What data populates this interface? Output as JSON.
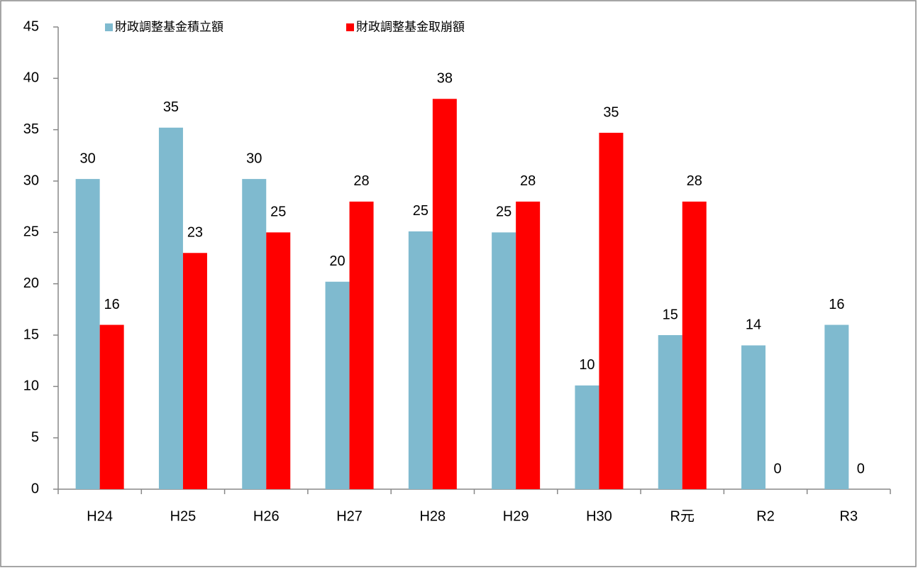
{
  "chart_data": {
    "type": "bar",
    "categories": [
      "H24",
      "H25",
      "H26",
      "H27",
      "H28",
      "H29",
      "H30",
      "R元",
      "R2",
      "R3"
    ],
    "series": [
      {
        "name": "財政調整基金積立額",
        "color": "#7fbacf",
        "values": [
          30.2,
          35.2,
          30.2,
          20.2,
          25.1,
          25.0,
          10.1,
          15.0,
          14.0,
          16.0
        ],
        "value_labels": [
          "30",
          "35",
          "30",
          "20",
          "25",
          "25",
          "10",
          "15",
          "14",
          "16"
        ]
      },
      {
        "name": "財政調整基金取崩額",
        "color": "#ff0000",
        "values": [
          16.0,
          23.0,
          25.0,
          28.0,
          38.0,
          28.0,
          34.7,
          28.0,
          0,
          0
        ],
        "value_labels": [
          "16",
          "23",
          "25",
          "28",
          "38",
          "28",
          "35",
          "28",
          "0",
          "0"
        ]
      }
    ],
    "ylim": [
      0,
      45
    ],
    "yticks": [
      0,
      5,
      10,
      15,
      20,
      25,
      30,
      35,
      40,
      45
    ],
    "grid": false,
    "legend": "top"
  }
}
